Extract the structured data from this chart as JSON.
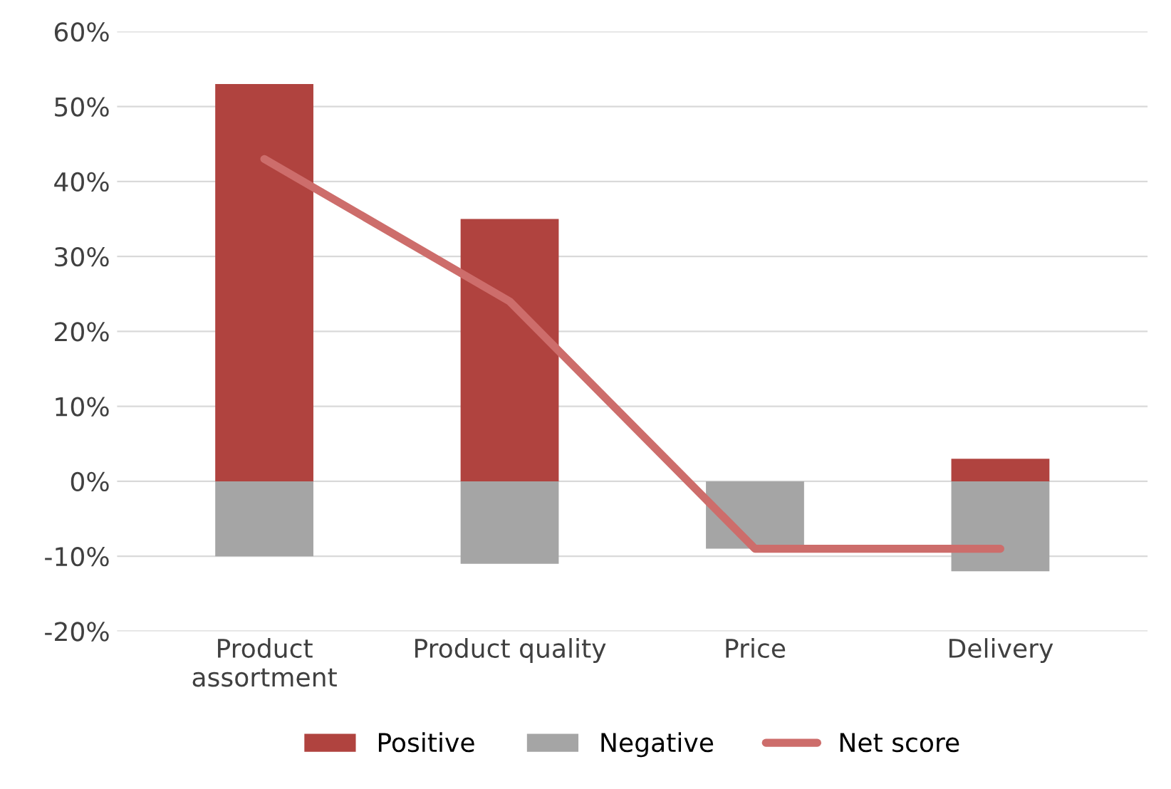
{
  "chart_data": {
    "type": "bar",
    "stacked": true,
    "categories": [
      "Product\nassortment",
      "Product quality",
      "Price",
      "Delivery"
    ],
    "series": [
      {
        "name": "Positive",
        "color": "#b0433f",
        "values": [
          53,
          35,
          null,
          3
        ]
      },
      {
        "name": "Negative",
        "color": "#a5a5a5",
        "values": [
          -10,
          -11,
          -9,
          -12
        ]
      },
      {
        "name": "Net score",
        "type": "line",
        "color": "#cd6d6b",
        "values": [
          43,
          24,
          -9,
          -9
        ]
      }
    ],
    "ylim": [
      -20,
      60
    ],
    "yticks": [
      {
        "value": -20,
        "label": "-20%"
      },
      {
        "value": -10,
        "label": "-10%"
      },
      {
        "value": 0,
        "label": "0%"
      },
      {
        "value": 10,
        "label": "10%"
      },
      {
        "value": 20,
        "label": "20%"
      },
      {
        "value": 30,
        "label": "30%"
      },
      {
        "value": 40,
        "label": "40%"
      },
      {
        "value": 50,
        "label": "50%"
      },
      {
        "value": 60,
        "label": "60%"
      }
    ],
    "grid": "y",
    "legend": "bottom",
    "marker": "none",
    "line_style": "solid"
  }
}
